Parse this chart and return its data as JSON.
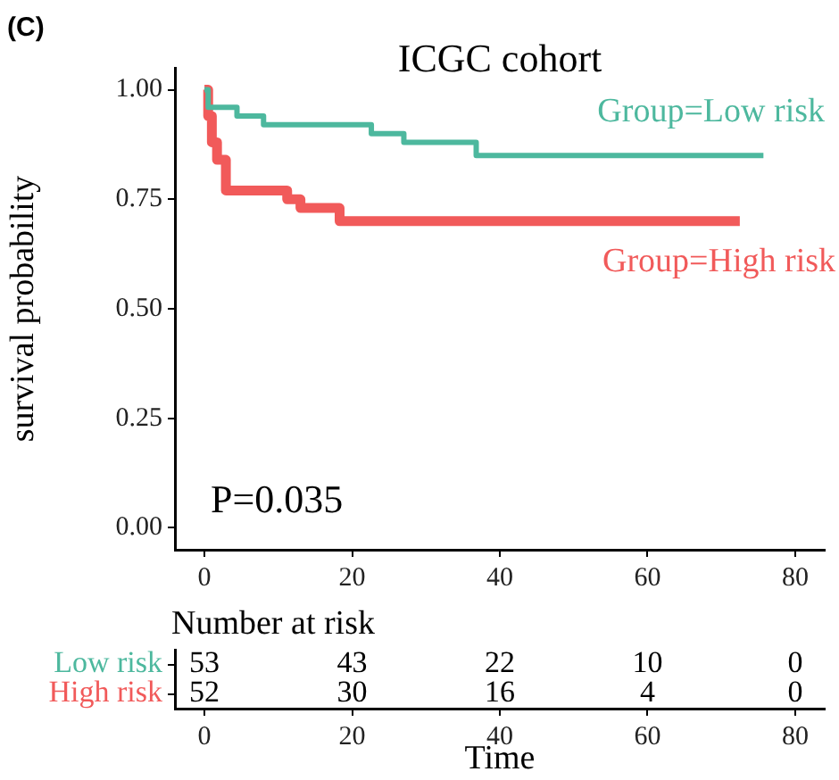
{
  "chart_data": [
    {
      "type": "step",
      "title": "ICGC cohort",
      "ylabel": "survival probability",
      "xlim": [
        -4,
        84
      ],
      "xticks": [
        0,
        20,
        40,
        60,
        80
      ],
      "ylim": [
        -0.05,
        1.05
      ],
      "yticks": [
        {
          "value": 0,
          "label": "0.00"
        },
        {
          "value": 0.25,
          "label": "0.25"
        },
        {
          "value": 0.5,
          "label": "0.50"
        },
        {
          "value": 0.75,
          "label": "0.75"
        },
        {
          "value": 1,
          "label": "1.00"
        }
      ],
      "legend": false,
      "marker": "none",
      "annotations": [
        "(C)",
        "P=0.035"
      ],
      "series": [
        {
          "name": "Group=Low risk",
          "color": "#4db89e",
          "x": [
            0,
            0.5,
            4.4,
            8,
            22.6,
            27,
            36.8,
            75.7
          ],
          "values": [
            1,
            0.96,
            0.94,
            0.92,
            0.9,
            0.88,
            0.85,
            0.85
          ]
        },
        {
          "name": "Group=High risk",
          "color": "#f15a5a",
          "x": [
            0,
            0.5,
            1,
            1.7,
            2.9,
            11.2,
            13,
            18.3,
            72.5
          ],
          "values": [
            1,
            0.94,
            0.88,
            0.84,
            0.77,
            0.75,
            0.73,
            0.7,
            0.7
          ]
        }
      ]
    },
    {
      "type": "heatmap",
      "title": "Number at risk",
      "xlabel": "Time",
      "categories": [
        "0",
        "20",
        "40",
        "60",
        "80"
      ],
      "y_categories": [
        "Low risk",
        "High risk"
      ],
      "colors": [
        "#4db89e",
        "#f15a5a"
      ],
      "data_labels": true,
      "cells": [
        [
          53,
          43,
          22,
          10,
          0
        ],
        [
          52,
          30,
          16,
          4,
          0
        ]
      ]
    }
  ]
}
